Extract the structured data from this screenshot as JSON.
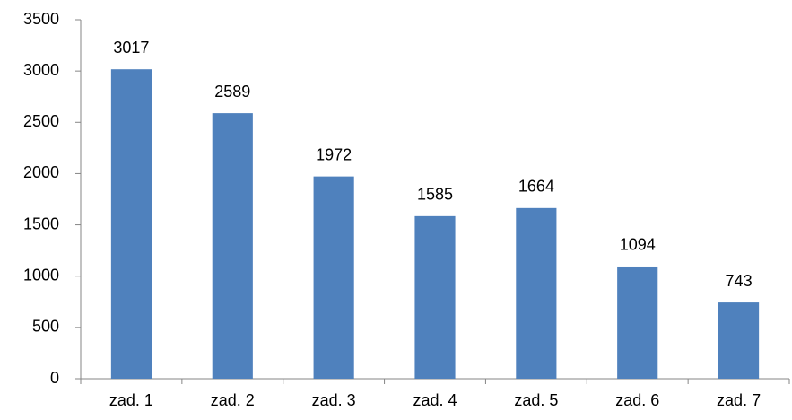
{
  "chart_data": {
    "type": "bar",
    "categories": [
      "zad. 1",
      "zad. 2",
      "zad. 3",
      "zad. 4",
      "zad. 5",
      "zad. 6",
      "zad. 7"
    ],
    "values": [
      3017,
      2589,
      1972,
      1585,
      1664,
      1094,
      743
    ],
    "color": "#4f81bd",
    "ylim": [
      0,
      3500
    ],
    "yticks": [
      0,
      500,
      1000,
      1500,
      2000,
      2500,
      3000,
      3500
    ],
    "grid": false,
    "data_labels": true
  }
}
